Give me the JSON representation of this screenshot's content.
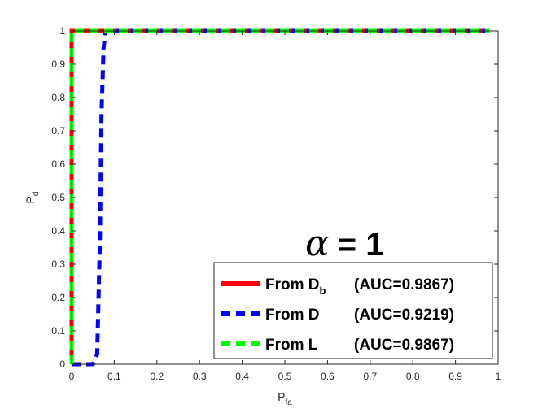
{
  "chart_data": {
    "type": "line",
    "xlabel": {
      "main": "P",
      "sub": "fa"
    },
    "ylabel": {
      "main": "P",
      "sub": "d"
    },
    "xlim": [
      0,
      1
    ],
    "ylim": [
      0,
      1
    ],
    "xticks": [
      "0",
      "0.1",
      "0.2",
      "0.3",
      "0.4",
      "0.5",
      "0.6",
      "0.7",
      "0.8",
      "0.9",
      "1"
    ],
    "yticks": [
      "0",
      "0.1",
      "0.2",
      "0.3",
      "0.4",
      "0.5",
      "0.6",
      "0.7",
      "0.8",
      "0.9",
      "1"
    ],
    "grid": false,
    "legend_position": "bottom-right",
    "annotation": {
      "symbol": "α",
      "text": "= 1"
    },
    "series": [
      {
        "name": "From D_b (AUC=0.9867)",
        "legend_main": "From D",
        "legend_sub": "b",
        "legend_rest": "(AUC=0.9867)",
        "color": "#ff0000",
        "style": "solid",
        "x": [
          0,
          0,
          0.98
        ],
        "y": [
          0,
          1,
          1
        ]
      },
      {
        "name": "From D (AUC=0.9219)",
        "legend_main": "From D",
        "legend_sub": "",
        "legend_rest": "(AUC=0.9219)",
        "color": "#0000ff",
        "style": "dashed",
        "x": [
          0,
          0.05,
          0.06,
          0.066,
          0.07,
          0.075,
          0.08,
          0.98
        ],
        "y": [
          0,
          0,
          0.03,
          0.35,
          0.75,
          0.95,
          1,
          1
        ]
      },
      {
        "name": "From L (AUC=0.9867)",
        "legend_main": "From L",
        "legend_sub": "",
        "legend_rest": "(AUC=0.9867)",
        "color": "#00ff00",
        "style": "dashed",
        "x": [
          0,
          0,
          0.98
        ],
        "y": [
          0,
          1,
          1
        ]
      }
    ]
  }
}
